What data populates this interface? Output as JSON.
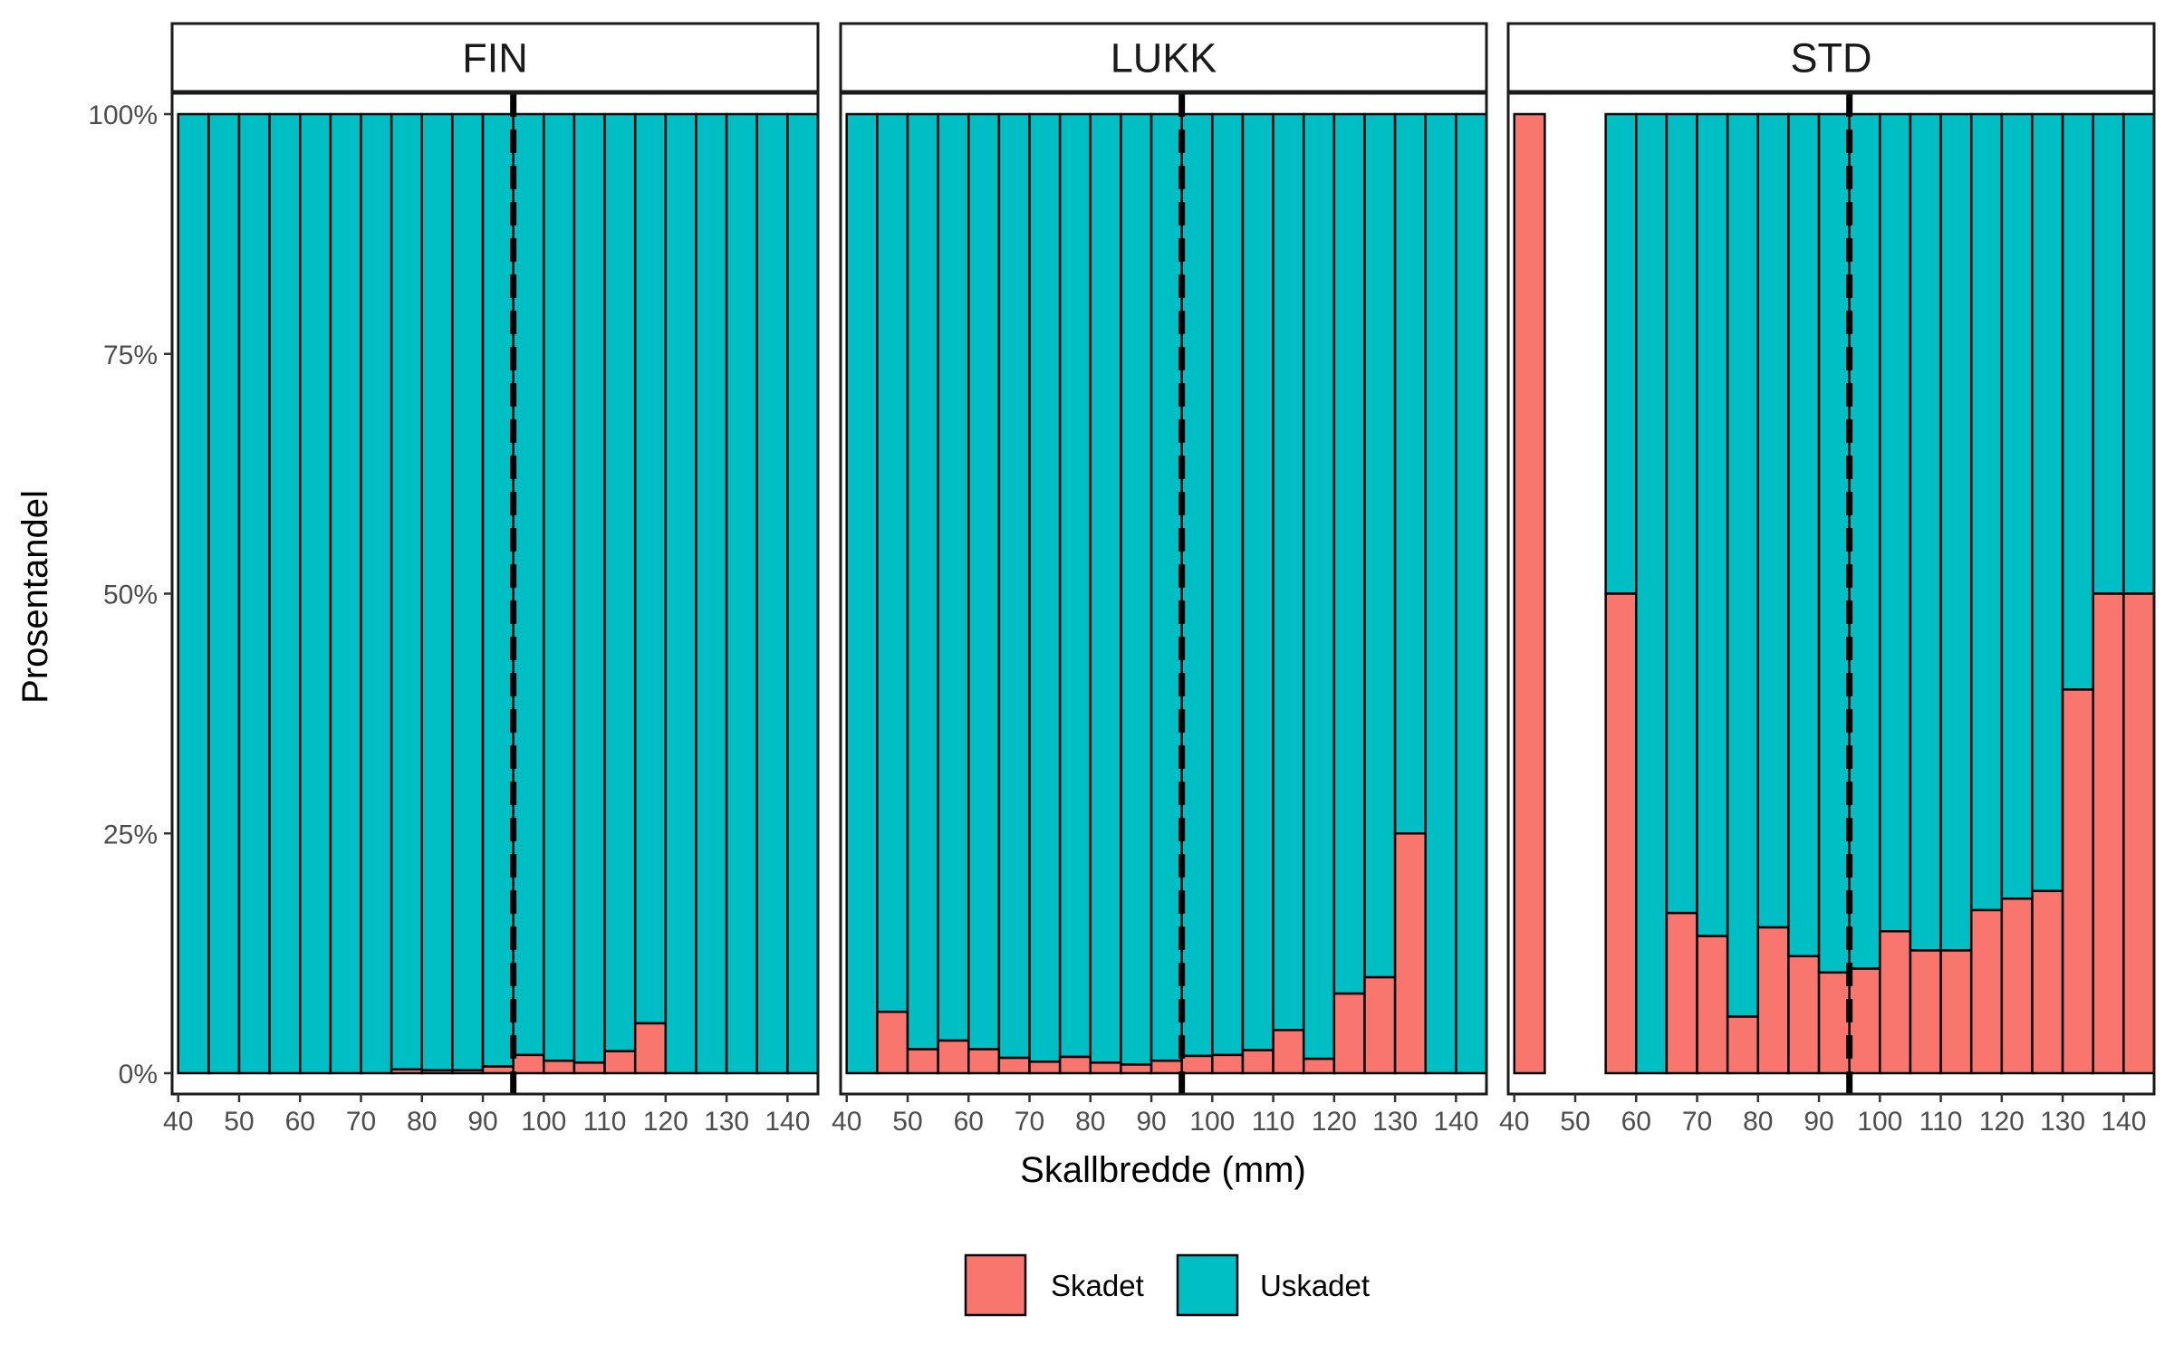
{
  "chart_data": {
    "type": "bar",
    "stacked": "fill",
    "xlabel": "Skallbredde (mm)",
    "ylabel": "Prosentandel",
    "xlim": [
      39,
      145
    ],
    "ylim": [
      0,
      1
    ],
    "x_ticks": [
      40,
      50,
      60,
      70,
      80,
      90,
      100,
      110,
      120,
      130,
      140
    ],
    "y_ticks": [
      0,
      0.25,
      0.5,
      0.75,
      1
    ],
    "y_tick_labels": [
      "0%",
      "25%",
      "50%",
      "75%",
      "100%"
    ],
    "bin_width": 5,
    "reference_line": {
      "x": 95,
      "style": "dashed"
    },
    "grid": false,
    "legend_position": "bottom",
    "series_names": [
      "Skadet",
      "Uskadet"
    ],
    "colors": {
      "Skadet": "#F8766D",
      "Uskadet": "#00BFC4"
    },
    "panels": [
      {
        "name": "FIN",
        "bins": [
          {
            "x": 42.5,
            "skadet": 0
          },
          {
            "x": 47.5,
            "skadet": 0
          },
          {
            "x": 52.5,
            "skadet": 0
          },
          {
            "x": 57.5,
            "skadet": 0
          },
          {
            "x": 62.5,
            "skadet": 0
          },
          {
            "x": 67.5,
            "skadet": 0
          },
          {
            "x": 72.5,
            "skadet": 0
          },
          {
            "x": 77.5,
            "skadet": 0.004
          },
          {
            "x": 82.5,
            "skadet": 0.003
          },
          {
            "x": 87.5,
            "skadet": 0.003
          },
          {
            "x": 92.5,
            "skadet": 0.007
          },
          {
            "x": 97.5,
            "skadet": 0.019
          },
          {
            "x": 102.5,
            "skadet": 0.013
          },
          {
            "x": 107.5,
            "skadet": 0.011
          },
          {
            "x": 112.5,
            "skadet": 0.023
          },
          {
            "x": 117.5,
            "skadet": 0.052
          },
          {
            "x": 122.5,
            "skadet": 0
          },
          {
            "x": 127.5,
            "skadet": 0
          },
          {
            "x": 132.5,
            "skadet": 0
          },
          {
            "x": 137.5,
            "skadet": 0
          },
          {
            "x": 142.5,
            "skadet": 0
          }
        ]
      },
      {
        "name": "LUKK",
        "bins": [
          {
            "x": 42.5,
            "skadet": 0
          },
          {
            "x": 47.5,
            "skadet": 0.064
          },
          {
            "x": 52.5,
            "skadet": 0.025
          },
          {
            "x": 57.5,
            "skadet": 0.034
          },
          {
            "x": 62.5,
            "skadet": 0.025
          },
          {
            "x": 67.5,
            "skadet": 0.016
          },
          {
            "x": 72.5,
            "skadet": 0.012
          },
          {
            "x": 77.5,
            "skadet": 0.017
          },
          {
            "x": 82.5,
            "skadet": 0.011
          },
          {
            "x": 87.5,
            "skadet": 0.009
          },
          {
            "x": 92.5,
            "skadet": 0.013
          },
          {
            "x": 97.5,
            "skadet": 0.018
          },
          {
            "x": 102.5,
            "skadet": 0.019
          },
          {
            "x": 107.5,
            "skadet": 0.024
          },
          {
            "x": 112.5,
            "skadet": 0.045
          },
          {
            "x": 117.5,
            "skadet": 0.015
          },
          {
            "x": 122.5,
            "skadet": 0.083
          },
          {
            "x": 127.5,
            "skadet": 0.1
          },
          {
            "x": 132.5,
            "skadet": 0.25
          },
          {
            "x": 137.5,
            "skadet": 0
          },
          {
            "x": 142.5,
            "skadet": 0
          }
        ]
      },
      {
        "name": "STD",
        "bins": [
          {
            "x": 42.5,
            "skadet": 1
          },
          {
            "x": 57.5,
            "skadet": 0.5
          },
          {
            "x": 62.5,
            "skadet": 0
          },
          {
            "x": 67.5,
            "skadet": 0.167
          },
          {
            "x": 72.5,
            "skadet": 0.143
          },
          {
            "x": 77.5,
            "skadet": 0.059
          },
          {
            "x": 82.5,
            "skadet": 0.152
          },
          {
            "x": 87.5,
            "skadet": 0.122
          },
          {
            "x": 92.5,
            "skadet": 0.105
          },
          {
            "x": 97.5,
            "skadet": 0.109
          },
          {
            "x": 102.5,
            "skadet": 0.148
          },
          {
            "x": 107.5,
            "skadet": 0.128
          },
          {
            "x": 112.5,
            "skadet": 0.128
          },
          {
            "x": 117.5,
            "skadet": 0.17
          },
          {
            "x": 122.5,
            "skadet": 0.182
          },
          {
            "x": 127.5,
            "skadet": 0.19
          },
          {
            "x": 132.5,
            "skadet": 0.4
          },
          {
            "x": 137.5,
            "skadet": 0.5
          },
          {
            "x": 142.5,
            "skadet": 0.5
          }
        ]
      }
    ]
  }
}
